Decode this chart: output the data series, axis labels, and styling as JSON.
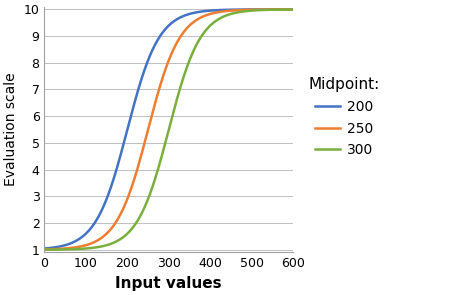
{
  "title": "",
  "xlabel": "Input values",
  "ylabel": "Evaluation scale",
  "xlim": [
    0,
    600
  ],
  "ylim": [
    1,
    10
  ],
  "xticks": [
    0,
    100,
    200,
    300,
    400,
    500,
    600
  ],
  "yticks": [
    1,
    2,
    3,
    4,
    5,
    6,
    7,
    8,
    9,
    10
  ],
  "curves": [
    {
      "midpoint": 200,
      "color": "#4472C4",
      "label": "200"
    },
    {
      "midpoint": 250,
      "color": "#ED7D31",
      "label": "250"
    },
    {
      "midpoint": 300,
      "color": "#7AAF3E",
      "label": "300"
    }
  ],
  "y_min": 1,
  "y_max": 10,
  "spread": 38,
  "legend_title": "Midpoint:",
  "background_color": "#FFFFFF",
  "grid_color": "#C0C0C0",
  "xlabel_fontsize": 11,
  "ylabel_fontsize": 10,
  "tick_fontsize": 9,
  "legend_fontsize": 10,
  "legend_title_fontsize": 11
}
